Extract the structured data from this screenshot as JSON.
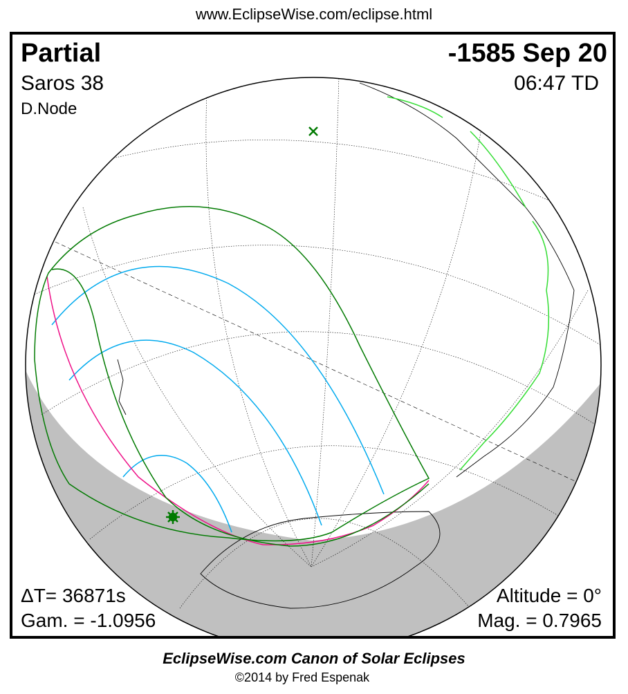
{
  "header_url": "www.EclipseWise.com/eclipse.html",
  "eclipse_type": "Partial",
  "date": "-1585 Sep 20",
  "saros": "Saros  38",
  "time": "06:47 TD",
  "node": "D.Node",
  "delta_t": "ΔT=  36871s",
  "gamma": "Gam. = -1.0956",
  "altitude": "Altitude =  0°",
  "magnitude": "Mag. = 0.7965",
  "footer_title": "EclipseWise.com Canon of Solar Eclipses",
  "footer_copyright": "©2014 by Fred Espenak",
  "colors": {
    "limits": "#007a00",
    "magnitude_curves": "#00aaee",
    "rise_set": "#ee1188",
    "coast_highlight": "#33dd33",
    "night": "#c0c0c0"
  }
}
